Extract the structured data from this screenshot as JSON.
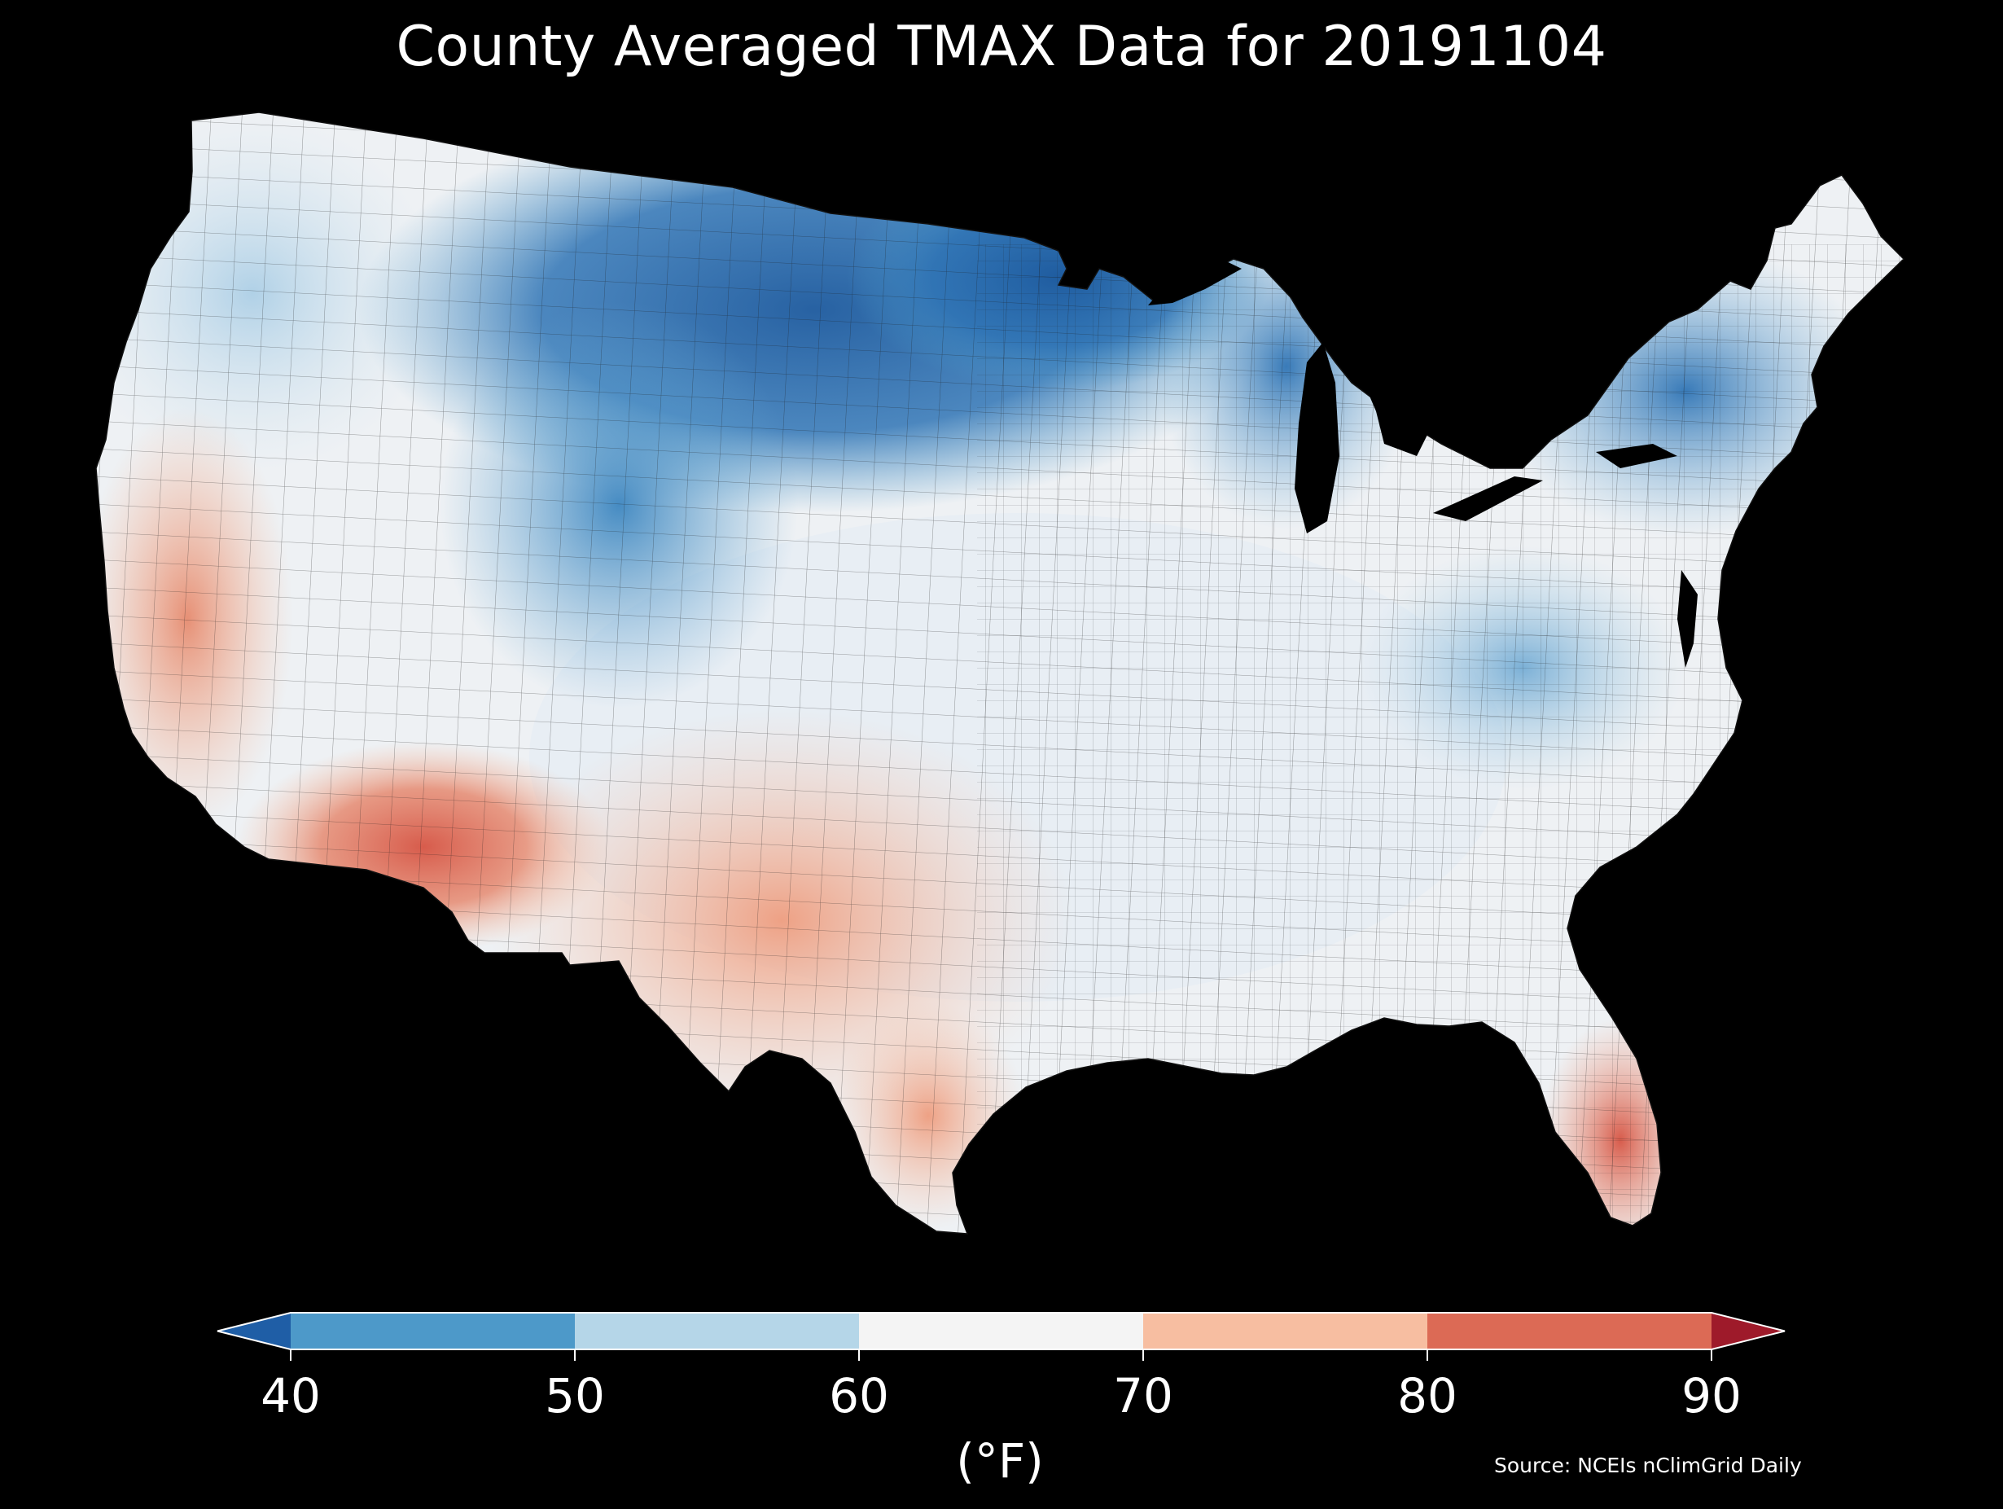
{
  "title": "County Averaged TMAX Data for 20191104",
  "source": "Source: NCEIs nClimGrid Daily",
  "colorbar": {
    "unit": "(°F)",
    "ticks": [
      "40",
      "50",
      "60",
      "70",
      "80",
      "90"
    ],
    "bins": [
      {
        "range": "<40",
        "color": "#1f5ea6"
      },
      {
        "range": "40-50",
        "color": "#4d99c9"
      },
      {
        "range": "50-60",
        "color": "#b5d6e8"
      },
      {
        "range": "60-70",
        "color": "#f4f4f4"
      },
      {
        "range": "70-80",
        "color": "#f7bea1"
      },
      {
        "range": "80-90",
        "color": "#dc6a55"
      },
      {
        "range": ">90",
        "color": "#9e1a2a"
      }
    ]
  },
  "map": {
    "type": "choropleth",
    "variable": "TMAX",
    "region": "Contiguous United States counties",
    "regional_pattern": [
      {
        "region": "Northern Plains / Upper Midwest",
        "band": "<40 to 40-50",
        "color": "#2a6aad"
      },
      {
        "region": "Northern Rockies",
        "band": "40-50",
        "color": "#4a92c6"
      },
      {
        "region": "Great Lakes / Northeast",
        "band": "40-50",
        "color": "#4d92c8"
      },
      {
        "region": "Pacific Northwest",
        "band": "50-60",
        "color": "#c6dff0"
      },
      {
        "region": "Central Plains / Ohio Valley",
        "band": "50-60 to 60-70",
        "color": "#dfeaf3"
      },
      {
        "region": "Great Basin",
        "band": "60-70",
        "color": "#eef1f4"
      },
      {
        "region": "Southeast",
        "band": "60-70",
        "color": "#f2f2f2"
      },
      {
        "region": "California coast",
        "band": "70-80",
        "color": "#ef9f82"
      },
      {
        "region": "Southern Plains / Texas",
        "band": "70-80",
        "color": "#f3ad90"
      },
      {
        "region": "Southwest desert",
        "band": "80-90",
        "color": "#d9604d"
      },
      {
        "region": "South Florida",
        "band": "80-90",
        "color": "#dc6a55"
      }
    ]
  }
}
